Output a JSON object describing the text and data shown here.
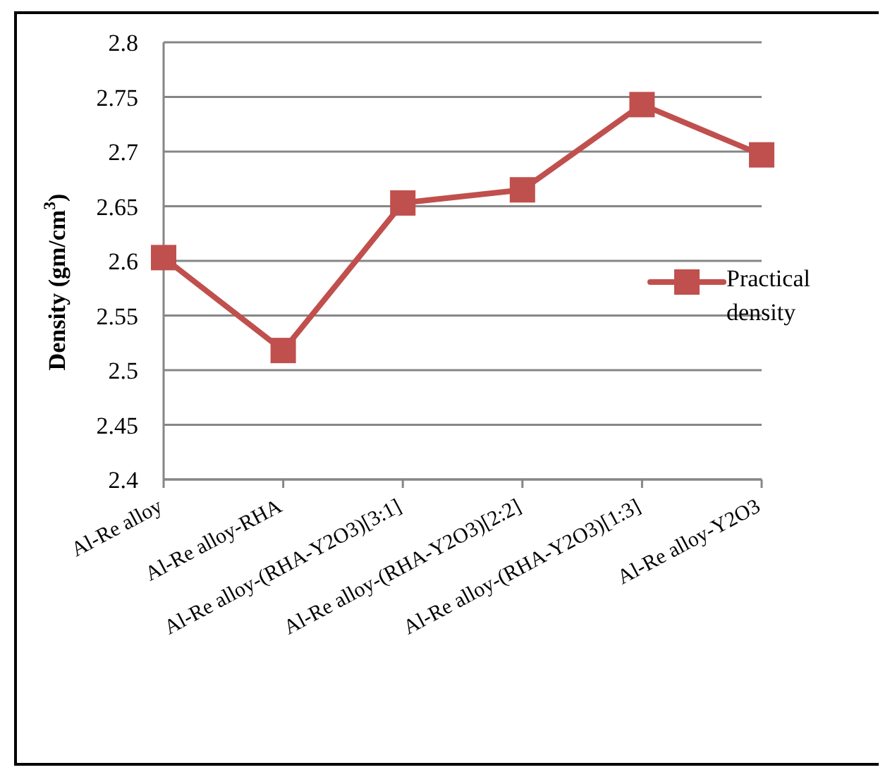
{
  "chart_data": {
    "type": "line",
    "ylabel": "Density (gm/cm$^{3}$)",
    "categories": [
      "Al-Re alloy",
      "Al-Re alloy-RHA",
      "Al-Re alloy-(RHA-Y2O3)[3:1]",
      "Al-Re alloy-(RHA-Y2O3)[2:2]",
      "Al-Re alloy-(RHA-Y2O3)[1:3]",
      "Al-Re alloy-Y2O3"
    ],
    "series": [
      {
        "name": "Practical density",
        "color": "#c0504d",
        "values": [
          2.603,
          2.518,
          2.653,
          2.665,
          2.743,
          2.697
        ]
      }
    ],
    "ylim": [
      2.4,
      2.8
    ],
    "yticks": [
      2.4,
      2.45,
      2.5,
      2.55,
      2.6,
      2.65,
      2.7,
      2.75,
      2.8
    ],
    "grid": "y",
    "legend": "right",
    "marker": "square",
    "line_style": "solid"
  }
}
